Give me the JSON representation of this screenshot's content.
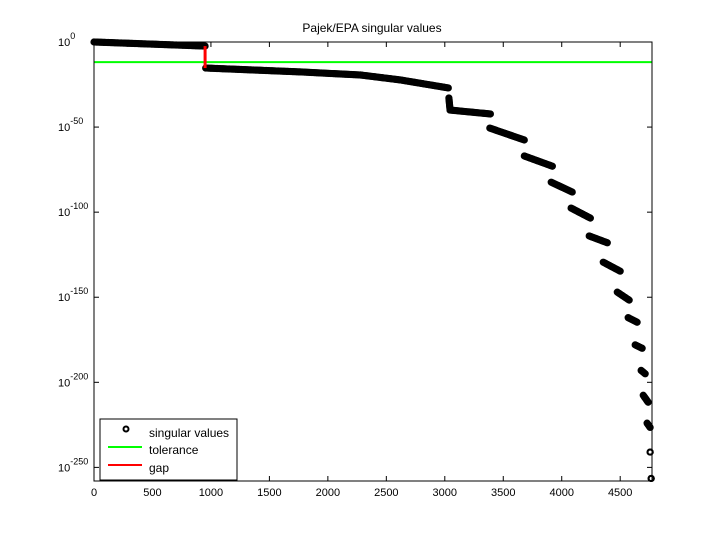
{
  "chart_data": {
    "type": "scatter",
    "title": "Pajek/EPA singular values",
    "xlabel": "",
    "ylabel": "",
    "xlim": [
      0,
      4772
    ],
    "ylim_log10": [
      -258,
      0
    ],
    "yscale": "log",
    "grid": false,
    "x_ticks": [
      0,
      500,
      1000,
      1500,
      2000,
      2500,
      3000,
      3500,
      4000,
      4500
    ],
    "x_tick_labels": [
      "0",
      "500",
      "1000",
      "1500",
      "2000",
      "2500",
      "3000",
      "3500",
      "4000",
      "4500"
    ],
    "y_ticks_log10": [
      0,
      -50,
      -100,
      -150,
      -200,
      -250
    ],
    "y_tick_base": "10",
    "y_tick_exponents": [
      "0",
      "-50",
      "-100",
      "-150",
      "-200",
      "-250"
    ],
    "legend": {
      "placement": "bottom-left",
      "entries": [
        "singular values",
        "tolerance",
        "gap"
      ]
    },
    "series": [
      {
        "name": "singular values",
        "marker": "circle",
        "color": "#000000",
        "note_segments_format": "[index_start, log10_start, index_end, log10_end]",
        "segments": [
          [
            0,
            0,
            950,
            -2.4
          ],
          [
            955,
            -15.3,
            1770,
            -17.6
          ],
          [
            1770,
            -17.6,
            2280,
            -19.4
          ],
          [
            2280,
            -19.4,
            2620,
            -22.3
          ],
          [
            2620,
            -22.3,
            3030,
            -27
          ],
          [
            3035,
            -32.9,
            3045,
            -40
          ],
          [
            3045,
            -40,
            3390,
            -42.3
          ],
          [
            3385,
            -50.6,
            3680,
            -57.6
          ],
          [
            3680,
            -67,
            3920,
            -73
          ],
          [
            3910,
            -82.4,
            4090,
            -88.2
          ],
          [
            4080,
            -97.6,
            4245,
            -103.5
          ],
          [
            4235,
            -114,
            4390,
            -118
          ],
          [
            4355,
            -129.4,
            4500,
            -134.7
          ],
          [
            4475,
            -147,
            4577,
            -151.7
          ],
          [
            4568,
            -162,
            4645,
            -164.7
          ],
          [
            4628,
            -178,
            4688,
            -180
          ],
          [
            4679,
            -193,
            4714,
            -195
          ],
          [
            4697,
            -207.6,
            4739,
            -211.7
          ],
          [
            4730,
            -224,
            4756,
            -226.5
          ],
          [
            4756,
            -241,
            4756,
            -241
          ],
          [
            4765,
            -256.5,
            4765,
            -256.5
          ]
        ]
      },
      {
        "name": "tolerance",
        "type": "hline",
        "color": "#00ff00",
        "log10_value": -11.8
      },
      {
        "name": "gap",
        "type": "vline",
        "color": "#ff0000",
        "x": 950,
        "log10_range": [
          -2.4,
          -15.3
        ]
      }
    ]
  }
}
